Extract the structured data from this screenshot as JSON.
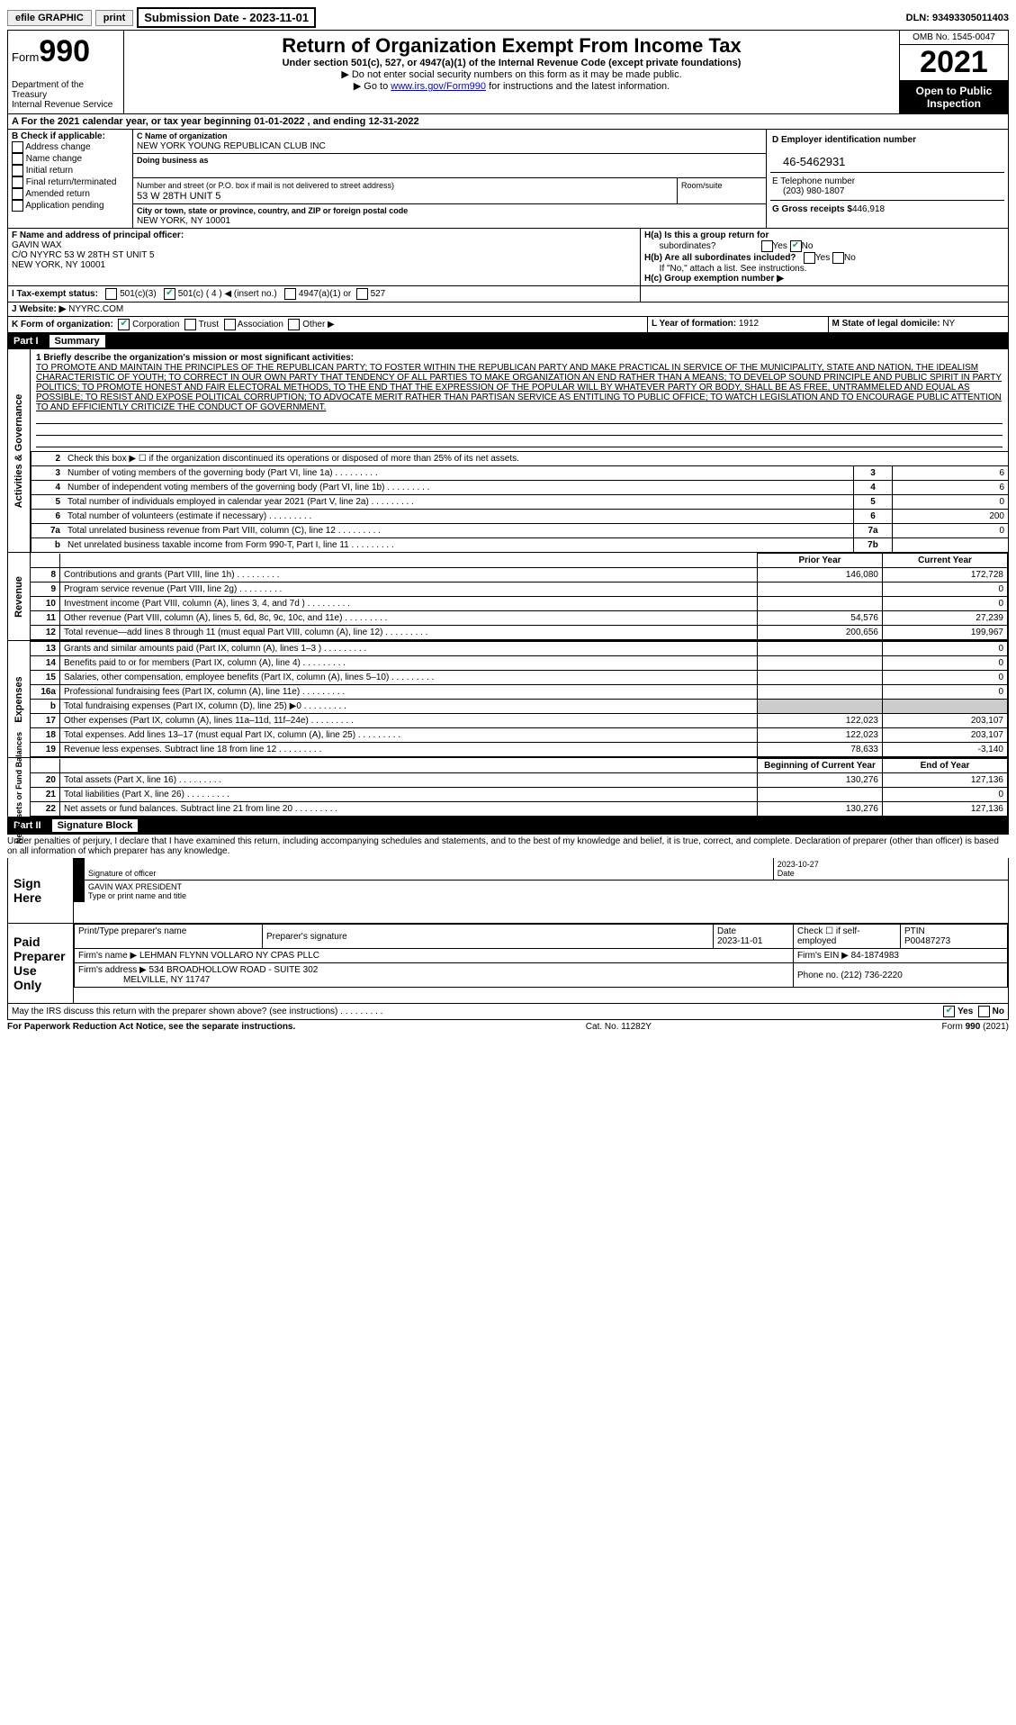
{
  "topbar": {
    "efile": "efile GRAPHIC",
    "print": "print",
    "submission": "Submission Date - 2023-11-01",
    "dln": "DLN: 93493305011403"
  },
  "header": {
    "form_prefix": "Form",
    "form_num": "990",
    "dept": "Department of the Treasury",
    "irs": "Internal Revenue Service",
    "title": "Return of Organization Exempt From Income Tax",
    "sub1": "Under section 501(c), 527, or 4947(a)(1) of the Internal Revenue Code (except private foundations)",
    "sub2": "▶ Do not enter social security numbers on this form as it may be made public.",
    "sub3_pre": "▶ Go to ",
    "sub3_link": "www.irs.gov/Form990",
    "sub3_post": " for instructions and the latest information.",
    "omb": "OMB No. 1545-0047",
    "year": "2021",
    "open": "Open to Public Inspection"
  },
  "rowA": "A For the 2021 calendar year, or tax year beginning 01-01-2022   , and ending 12-31-2022",
  "colB": {
    "title": "B Check if applicable:",
    "items": [
      "Address change",
      "Name change",
      "Initial return",
      "Final return/terminated",
      "Amended return",
      "Application pending"
    ]
  },
  "colC": {
    "name_label": "C Name of organization",
    "name": "NEW YORK YOUNG REPUBLICAN CLUB INC",
    "dba_label": "Doing business as",
    "addr_label": "Number and street (or P.O. box if mail is not delivered to street address)",
    "addr": "53 W 28TH UNIT 5",
    "suite_label": "Room/suite",
    "city_label": "City or town, state or province, country, and ZIP or foreign postal code",
    "city": "NEW YORK, NY  10001"
  },
  "colD": {
    "ein_label": "D Employer identification number",
    "ein": "46-5462931",
    "tel_label": "E Telephone number",
    "tel": "(203) 980-1807",
    "gross_label": "G Gross receipts $",
    "gross": "446,918"
  },
  "rowF": {
    "label": "F  Name and address of principal officer:",
    "name": "GAVIN WAX",
    "addr": "C/O NYYRC 53 W 28TH ST UNIT 5",
    "city": "NEW YORK, NY  10001"
  },
  "rowH": {
    "a": "H(a)  Is this a group return for",
    "a2": "subordinates?",
    "b": "H(b)  Are all subordinates included?",
    "b2": "If \"No,\" attach a list. See instructions.",
    "c": "H(c)  Group exemption number ▶"
  },
  "rowI": {
    "label": "I   Tax-exempt status:",
    "opt1": "501(c)(3)",
    "opt2": "501(c) ( 4 ) ◀ (insert no.)",
    "opt3": "4947(a)(1) or",
    "opt4": "527"
  },
  "rowJ": {
    "label": "J   Website: ▶",
    "val": "NYYRC.COM"
  },
  "rowK": {
    "label": "K Form of organization:",
    "opts": [
      "Corporation",
      "Trust",
      "Association",
      "Other ▶"
    ]
  },
  "rowL": {
    "label": "L Year of formation:",
    "val": "1912",
    "m_label": "M State of legal domicile:",
    "m_val": "NY"
  },
  "part1": {
    "num": "Part I",
    "title": "Summary"
  },
  "mission": {
    "q": "1   Briefly describe the organization's mission or most significant activities:",
    "text": "TO PROMOTE AND MAINTAIN THE PRINCIPLES OF THE REPUBLICAN PARTY; TO FOSTER WITHIN THE REPUBLICAN PARTY AND MAKE PRACTICAL IN SERVICE OF THE MUNICIPALITY, STATE AND NATION, THE IDEALISM CHARACTERISTIC OF YOUTH; TO CORRECT IN OUR OWN PARTY THAT TENDENCY OF ALL PARTIES TO MAKE ORGANIZATION AN END RATHER THAN A MEANS; TO DEVELOP SOUND PRINCIPLE AND PUBLIC SPIRIT IN PARTY POLITICS; TO PROMOTE HONEST AND FAIR ELECTORAL METHODS, TO THE END THAT THE EXPRESSION OF THE POPULAR WILL BY WHATEVER PARTY OR BODY, SHALL BE AS FREE, UNTRAMMELED AND EQUAL AS POSSIBLE; TO RESIST AND EXPOSE POLITICAL CORRUPTION; TO ADVOCATE MERIT RATHER THAN PARTISAN SERVICE AS ENTITLING TO PUBLIC OFFICE; TO WATCH LEGISLATION AND TO ENCOURAGE PUBLIC ATTENTION TO AND EFFICIENTLY CRITICIZE THE CONDUCT OF GOVERNMENT."
  },
  "activities": {
    "vert": "Activities & Governance",
    "rows": [
      {
        "n": "2",
        "desc": "Check this box ▶ ☐  if the organization discontinued its operations or disposed of more than 25% of its net assets.",
        "box": "",
        "val": ""
      },
      {
        "n": "3",
        "desc": "Number of voting members of the governing body (Part VI, line 1a)",
        "box": "3",
        "val": "6"
      },
      {
        "n": "4",
        "desc": "Number of independent voting members of the governing body (Part VI, line 1b)",
        "box": "4",
        "val": "6"
      },
      {
        "n": "5",
        "desc": "Total number of individuals employed in calendar year 2021 (Part V, line 2a)",
        "box": "5",
        "val": "0"
      },
      {
        "n": "6",
        "desc": "Total number of volunteers (estimate if necessary)",
        "box": "6",
        "val": "200"
      },
      {
        "n": "7a",
        "desc": "Total unrelated business revenue from Part VIII, column (C), line 12",
        "box": "7a",
        "val": "0"
      },
      {
        "n": "b",
        "desc": "Net unrelated business taxable income from Form 990-T, Part I, line 11",
        "box": "7b",
        "val": ""
      }
    ]
  },
  "revenue": {
    "vert": "Revenue",
    "hdr_prior": "Prior Year",
    "hdr_curr": "Current Year",
    "rows": [
      {
        "n": "8",
        "desc": "Contributions and grants (Part VIII, line 1h)",
        "p": "146,080",
        "c": "172,728"
      },
      {
        "n": "9",
        "desc": "Program service revenue (Part VIII, line 2g)",
        "p": "",
        "c": "0"
      },
      {
        "n": "10",
        "desc": "Investment income (Part VIII, column (A), lines 3, 4, and 7d )",
        "p": "",
        "c": "0"
      },
      {
        "n": "11",
        "desc": "Other revenue (Part VIII, column (A), lines 5, 6d, 8c, 9c, 10c, and 11e)",
        "p": "54,576",
        "c": "27,239"
      },
      {
        "n": "12",
        "desc": "Total revenue—add lines 8 through 11 (must equal Part VIII, column (A), line 12)",
        "p": "200,656",
        "c": "199,967"
      }
    ]
  },
  "expenses": {
    "vert": "Expenses",
    "rows": [
      {
        "n": "13",
        "desc": "Grants and similar amounts paid (Part IX, column (A), lines 1–3 )",
        "p": "",
        "c": "0"
      },
      {
        "n": "14",
        "desc": "Benefits paid to or for members (Part IX, column (A), line 4)",
        "p": "",
        "c": "0"
      },
      {
        "n": "15",
        "desc": "Salaries, other compensation, employee benefits (Part IX, column (A), lines 5–10)",
        "p": "",
        "c": "0"
      },
      {
        "n": "16a",
        "desc": "Professional fundraising fees (Part IX, column (A), line 11e)",
        "p": "",
        "c": "0"
      },
      {
        "n": "b",
        "desc": "Total fundraising expenses (Part IX, column (D), line 25) ▶0",
        "p": "shade",
        "c": "shade"
      },
      {
        "n": "17",
        "desc": "Other expenses (Part IX, column (A), lines 11a–11d, 11f–24e)",
        "p": "122,023",
        "c": "203,107"
      },
      {
        "n": "18",
        "desc": "Total expenses. Add lines 13–17 (must equal Part IX, column (A), line 25)",
        "p": "122,023",
        "c": "203,107"
      },
      {
        "n": "19",
        "desc": "Revenue less expenses. Subtract line 18 from line 12",
        "p": "78,633",
        "c": "-3,140"
      }
    ]
  },
  "netassets": {
    "vert": "Net Assets or Fund Balances",
    "hdr_beg": "Beginning of Current Year",
    "hdr_end": "End of Year",
    "rows": [
      {
        "n": "20",
        "desc": "Total assets (Part X, line 16)",
        "p": "130,276",
        "c": "127,136"
      },
      {
        "n": "21",
        "desc": "Total liabilities (Part X, line 26)",
        "p": "",
        "c": "0"
      },
      {
        "n": "22",
        "desc": "Net assets or fund balances. Subtract line 21 from line 20",
        "p": "130,276",
        "c": "127,136"
      }
    ]
  },
  "part2": {
    "num": "Part II",
    "title": "Signature Block"
  },
  "penalty": "Under penalties of perjury, I declare that I have examined this return, including accompanying schedules and statements, and to the best of my knowledge and belief, it is true, correct, and complete. Declaration of preparer (other than officer) is based on all information of which preparer has any knowledge.",
  "sign": {
    "left": "Sign Here",
    "sig_label": "Signature of officer",
    "date": "2023-10-27",
    "date_label": "Date",
    "name": "GAVIN WAX  PRESIDENT",
    "name_label": "Type or print name and title"
  },
  "prep": {
    "left1": "Paid",
    "left2": "Preparer",
    "left3": "Use Only",
    "h1": "Print/Type preparer's name",
    "h2": "Preparer's signature",
    "h3": "Date",
    "h3v": "2023-11-01",
    "h4": "Check ☐ if self-employed",
    "h5": "PTIN",
    "h5v": "P00487273",
    "firm_name_l": "Firm's name    ▶",
    "firm_name": "LEHMAN FLYNN VOLLARO NY CPAS PLLC",
    "firm_ein_l": "Firm's EIN ▶",
    "firm_ein": "84-1874983",
    "firm_addr_l": "Firm's address ▶",
    "firm_addr": "534 BROADHOLLOW ROAD - SUITE 302",
    "firm_city": "MELVILLE, NY  11747",
    "phone_l": "Phone no.",
    "phone": "(212) 736-2220"
  },
  "discuss": "May the IRS discuss this return with the preparer shown above? (see instructions)",
  "yes": "Yes",
  "no": "No",
  "footer": {
    "left": "For Paperwork Reduction Act Notice, see the separate instructions.",
    "mid": "Cat. No. 11282Y",
    "right": "Form 990 (2021)"
  }
}
